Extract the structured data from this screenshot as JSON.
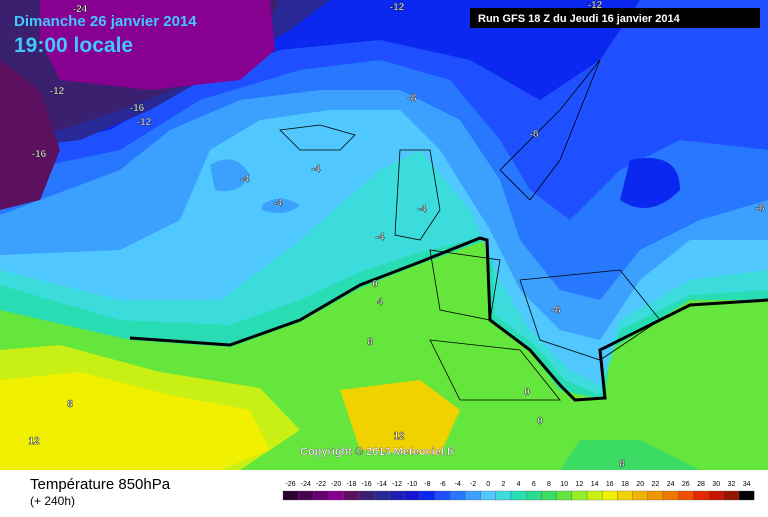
{
  "header": {
    "date": "Dimanche 26 janvier 2014",
    "time": "19:00 locale",
    "run": "Run GFS 18 Z du Jeudi 16 janvier 2014"
  },
  "map": {
    "copyright": "Copyright © 2013 Meteociel.fr",
    "contour_labels": [
      "-24",
      "-12",
      "-12",
      "-12",
      "-16",
      "-12",
      "-16",
      "-8",
      "-8",
      "-4",
      "-4",
      "-4",
      "-4",
      "-4",
      "-8",
      "0",
      "4",
      "8",
      "-8",
      "8",
      "12",
      "12",
      "0",
      "0",
      "8"
    ]
  },
  "footer": {
    "title": "Température 850hPa",
    "lead": "(+ 240h)"
  },
  "legend": {
    "labels": [
      "-26",
      "-24",
      "-22",
      "-20",
      "-18",
      "-16",
      "-14",
      "-12",
      "-10",
      "-8",
      "-6",
      "-4",
      "-2",
      "0",
      "2",
      "4",
      "6",
      "8",
      "10",
      "12",
      "14",
      "16",
      "18",
      "20",
      "22",
      "24",
      "26",
      "28",
      "30",
      "32",
      "34"
    ],
    "colors": [
      "#2d0030",
      "#4b0050",
      "#690070",
      "#870090",
      "#5c1060",
      "#3c2070",
      "#282896",
      "#1e1eb4",
      "#1414d2",
      "#0a28f0",
      "#1e50ff",
      "#2878ff",
      "#3ca0ff",
      "#50c8ff",
      "#3cdcdc",
      "#28dcb4",
      "#28dc8c",
      "#3cdc64",
      "#64e63c",
      "#96f028",
      "#c8f014",
      "#f0f000",
      "#f0d200",
      "#f0b400",
      "#f09600",
      "#f07800",
      "#f05000",
      "#e62800",
      "#c81400",
      "#961400",
      "#000000"
    ]
  }
}
